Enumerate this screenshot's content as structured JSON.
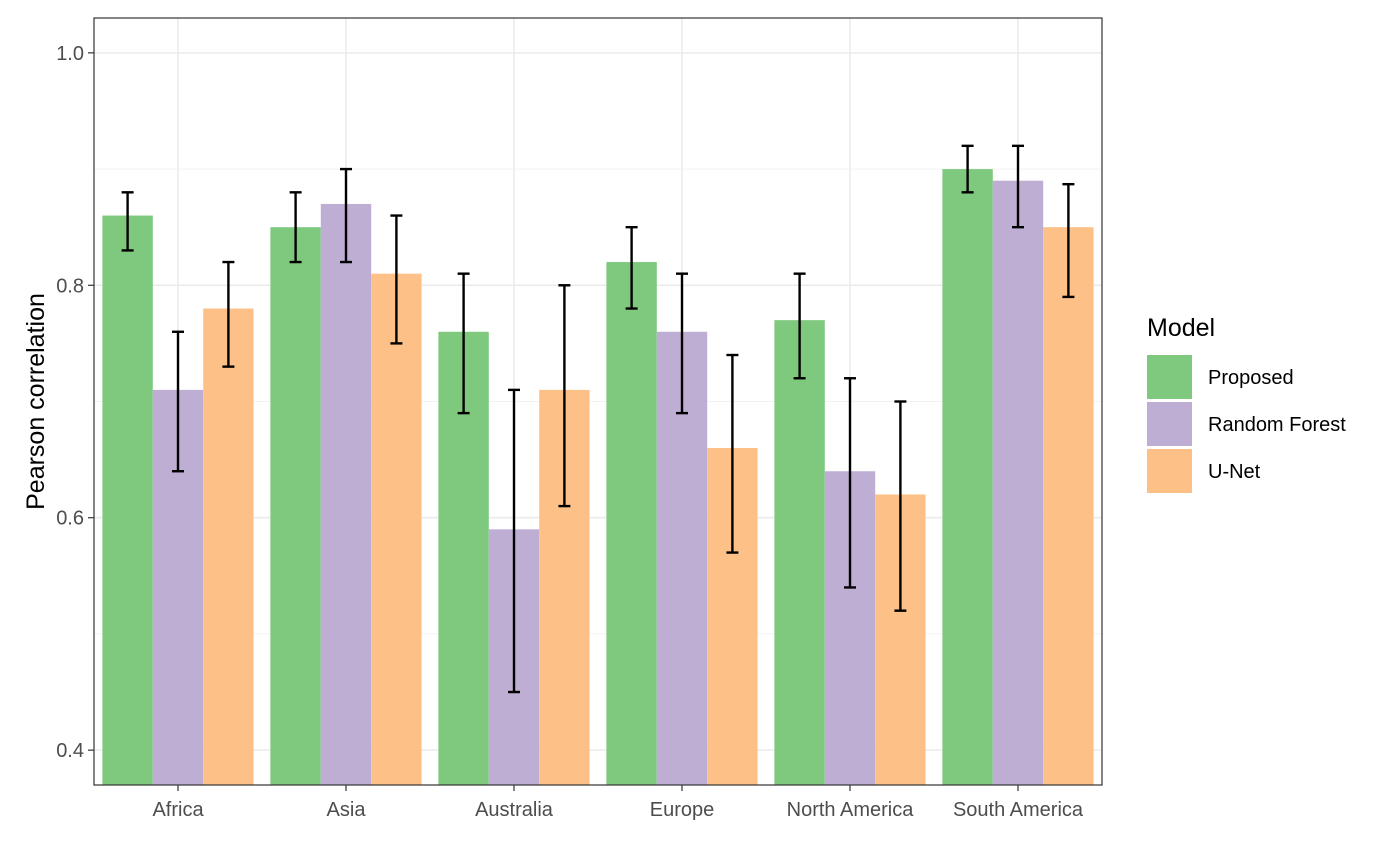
{
  "chart_data": {
    "type": "bar",
    "title": "",
    "xlabel": "",
    "ylabel": "Pearson correlation",
    "ylim": [
      0.37,
      1.03
    ],
    "yticks": [
      0.4,
      0.6,
      0.8,
      1.0
    ],
    "ytick_labels": [
      "0.4",
      "0.6",
      "0.8",
      "1.0"
    ],
    "categories": [
      "Africa",
      "Asia",
      "Australia",
      "Europe",
      "North America",
      "South America"
    ],
    "grid": true,
    "legend": {
      "title": "Model",
      "position": "right"
    },
    "series": [
      {
        "name": "Proposed",
        "color": "#7fc97f",
        "values": [
          0.86,
          0.85,
          0.76,
          0.82,
          0.77,
          0.9
        ],
        "err_low": [
          0.83,
          0.82,
          0.69,
          0.78,
          0.72,
          0.88
        ],
        "err_high": [
          0.88,
          0.88,
          0.81,
          0.85,
          0.81,
          0.92
        ]
      },
      {
        "name": "Random Forest",
        "color": "#beaed4",
        "values": [
          0.71,
          0.87,
          0.59,
          0.76,
          0.64,
          0.89
        ],
        "err_low": [
          0.64,
          0.82,
          0.45,
          0.69,
          0.54,
          0.85
        ],
        "err_high": [
          0.76,
          0.9,
          0.71,
          0.81,
          0.72,
          0.92
        ]
      },
      {
        "name": "U-Net",
        "color": "#fdc086",
        "values": [
          0.78,
          0.81,
          0.71,
          0.66,
          0.62,
          0.85
        ],
        "err_low": [
          0.73,
          0.75,
          0.61,
          0.57,
          0.52,
          0.79
        ],
        "err_high": [
          0.82,
          0.86,
          0.8,
          0.74,
          0.7,
          0.887
        ]
      }
    ]
  }
}
